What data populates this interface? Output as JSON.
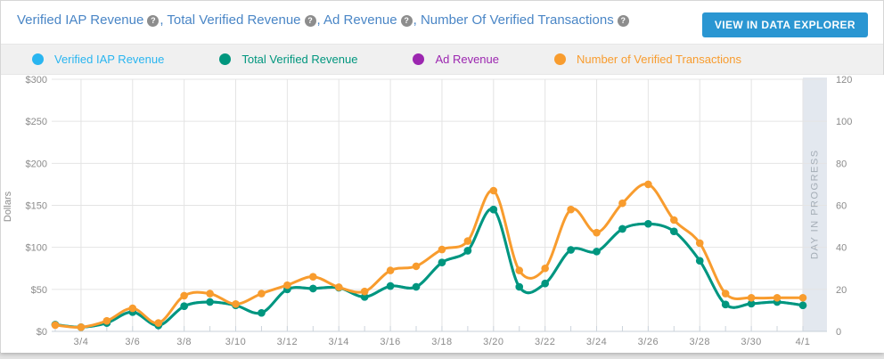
{
  "header": {
    "title_parts": [
      "Verified IAP Revenue",
      "Total Verified Revenue",
      "Ad Revenue",
      "Number Of Verified Transactions"
    ],
    "separator": ", ",
    "help_icon": "?",
    "button_label": "VIEW IN DATA EXPLORER"
  },
  "legend": {
    "items": [
      {
        "label": "Verified IAP Revenue",
        "color": "#29b5f0"
      },
      {
        "label": "Total Verified Revenue",
        "color": "#00967e"
      },
      {
        "label": "Ad Revenue",
        "color": "#9c27b0"
      },
      {
        "label": "Number of Verified Transactions",
        "color": "#f89c2e"
      }
    ]
  },
  "chart_data": {
    "type": "line",
    "x": [
      "3/3",
      "3/4",
      "3/5",
      "3/6",
      "3/7",
      "3/8",
      "3/9",
      "3/10",
      "3/11",
      "3/12",
      "3/13",
      "3/14",
      "3/15",
      "3/16",
      "3/17",
      "3/18",
      "3/19",
      "3/20",
      "3/21",
      "3/22",
      "3/23",
      "3/24",
      "3/25",
      "3/26",
      "3/27",
      "3/28",
      "3/29",
      "3/30",
      "3/31",
      "4/1"
    ],
    "x_tick_labels": [
      "3/4",
      "3/6",
      "3/8",
      "3/10",
      "3/12",
      "3/14",
      "3/16",
      "3/18",
      "3/20",
      "3/22",
      "3/24",
      "3/26",
      "3/28",
      "3/30",
      "4/1"
    ],
    "series": [
      {
        "name": "Verified IAP Revenue",
        "axis": "left",
        "color": "#29b5f0",
        "values": [
          8,
          5,
          10,
          23,
          7,
          30,
          35,
          31,
          22,
          50,
          51,
          52,
          41,
          54,
          53,
          82,
          96,
          145,
          53,
          57,
          97,
          95,
          122,
          128,
          119,
          84,
          32,
          33,
          35,
          31
        ]
      },
      {
        "name": "Total Verified Revenue",
        "axis": "left",
        "color": "#00967e",
        "values": [
          8,
          5,
          10,
          23,
          7,
          30,
          35,
          31,
          22,
          50,
          51,
          52,
          41,
          54,
          53,
          82,
          96,
          145,
          53,
          57,
          97,
          95,
          122,
          128,
          119,
          84,
          32,
          33,
          35,
          31
        ]
      },
      {
        "name": "Ad Revenue",
        "axis": "left",
        "color": "#9c27b0",
        "values": []
      },
      {
        "name": "Number of Verified Transactions",
        "axis": "right",
        "color": "#f89c2e",
        "values": [
          3,
          2,
          5,
          11,
          4,
          17,
          18,
          13,
          18,
          22,
          26,
          21,
          19,
          29,
          31,
          39,
          43,
          67,
          29,
          30,
          58,
          47,
          61,
          70,
          53,
          42,
          18,
          16,
          16,
          16
        ]
      }
    ],
    "left_axis": {
      "label": "Dollars",
      "min": 0,
      "max": 300,
      "tick_step": 50,
      "ticks": [
        "$0",
        "$50",
        "$100",
        "$150",
        "$200",
        "$250",
        "$300"
      ]
    },
    "right_axis": {
      "min": 0,
      "max": 120,
      "tick_step": 20,
      "ticks": [
        "0",
        "20",
        "40",
        "60",
        "80",
        "100",
        "120"
      ]
    },
    "overlay": {
      "label": "DAY IN PROGRESS"
    },
    "grid": "on",
    "legend_position": "top"
  }
}
